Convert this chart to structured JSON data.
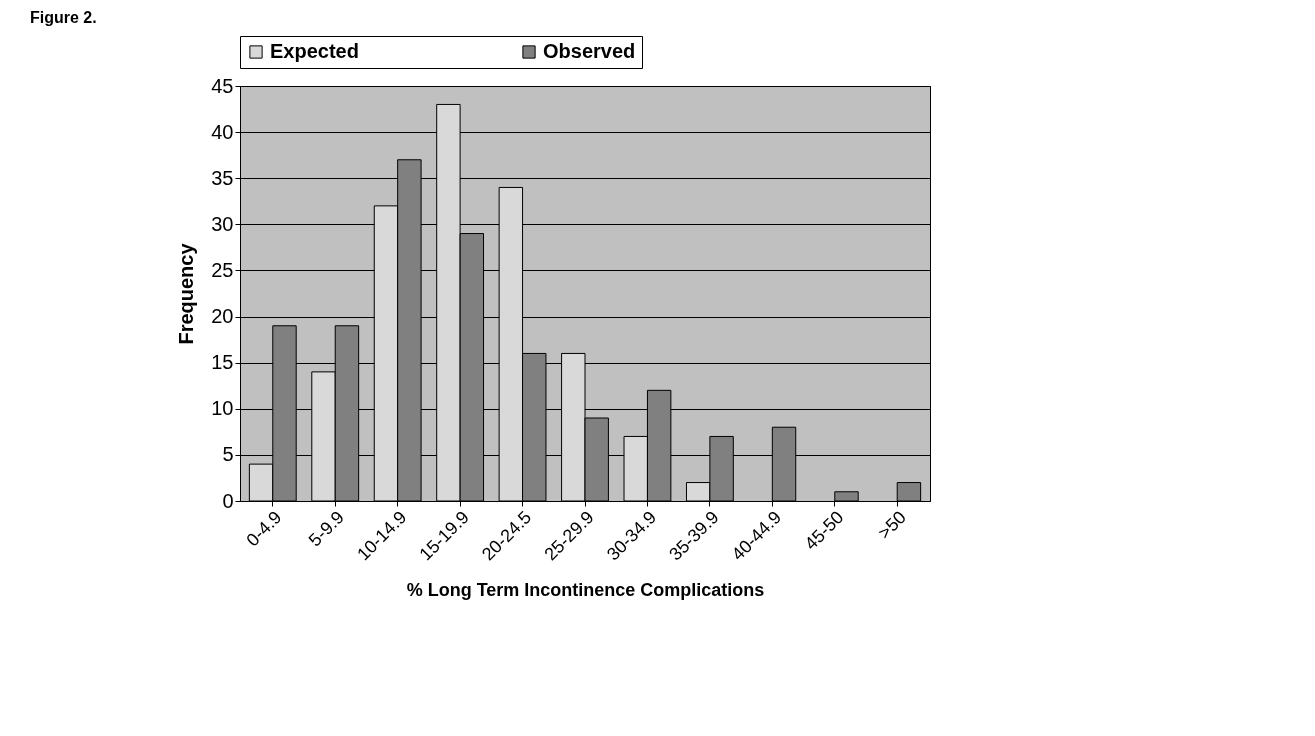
{
  "chart_data": {
    "type": "bar",
    "title": "Figure 2.",
    "xlabel": "%  Long Term Incontinence Complications",
    "ylabel": "Frequency",
    "categories": [
      "0-4.9",
      "5-9.9",
      "10-14.9",
      "15-19.9",
      "20-24.5",
      "25-29.9",
      "30-34.9",
      "35-39.9",
      "40-44.9",
      "45-50",
      ">50"
    ],
    "series": [
      {
        "name": "Expected",
        "color": "#d9d9d9",
        "values": [
          4,
          14,
          32,
          43,
          34,
          16,
          7,
          2,
          0,
          0,
          0
        ]
      },
      {
        "name": "Observed",
        "color": "#808080",
        "values": [
          19,
          19,
          37,
          29,
          16,
          9,
          12,
          7,
          8,
          1,
          2
        ]
      }
    ],
    "ylim": [
      0,
      45
    ],
    "yticks": [
      0,
      5,
      10,
      15,
      20,
      25,
      30,
      35,
      40,
      45
    ],
    "grid": "y",
    "legend": "top"
  }
}
